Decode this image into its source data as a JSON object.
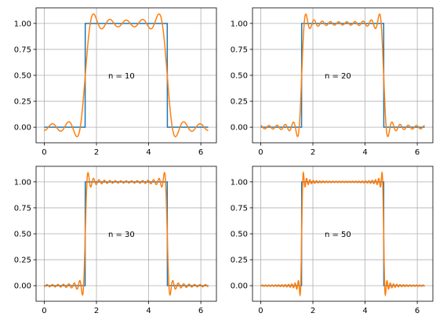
{
  "chart_data": {
    "type": "line",
    "grid": true,
    "xlim": [
      -0.3142,
      6.5973
    ],
    "ylim": [
      -0.15,
      1.15
    ],
    "x_ticks": [
      "0",
      "2",
      "4",
      "6"
    ],
    "y_ticks": [
      "0.00",
      "0.25",
      "0.50",
      "0.75",
      "1.00"
    ],
    "colors": {
      "square_wave": "#1f77b4",
      "approximation": "#ff7f0e"
    },
    "square_wave": {
      "x_start": 0,
      "x_end": 6.2832,
      "low": 0,
      "high": 1,
      "rise_at": 1.5708,
      "fall_at": 4.7124
    },
    "panels": [
      {
        "n": 10,
        "annotation": "n = 10"
      },
      {
        "n": 20,
        "annotation": "n = 20"
      },
      {
        "n": 30,
        "annotation": "n = 30"
      },
      {
        "n": 50,
        "annotation": "n = 50"
      }
    ]
  }
}
